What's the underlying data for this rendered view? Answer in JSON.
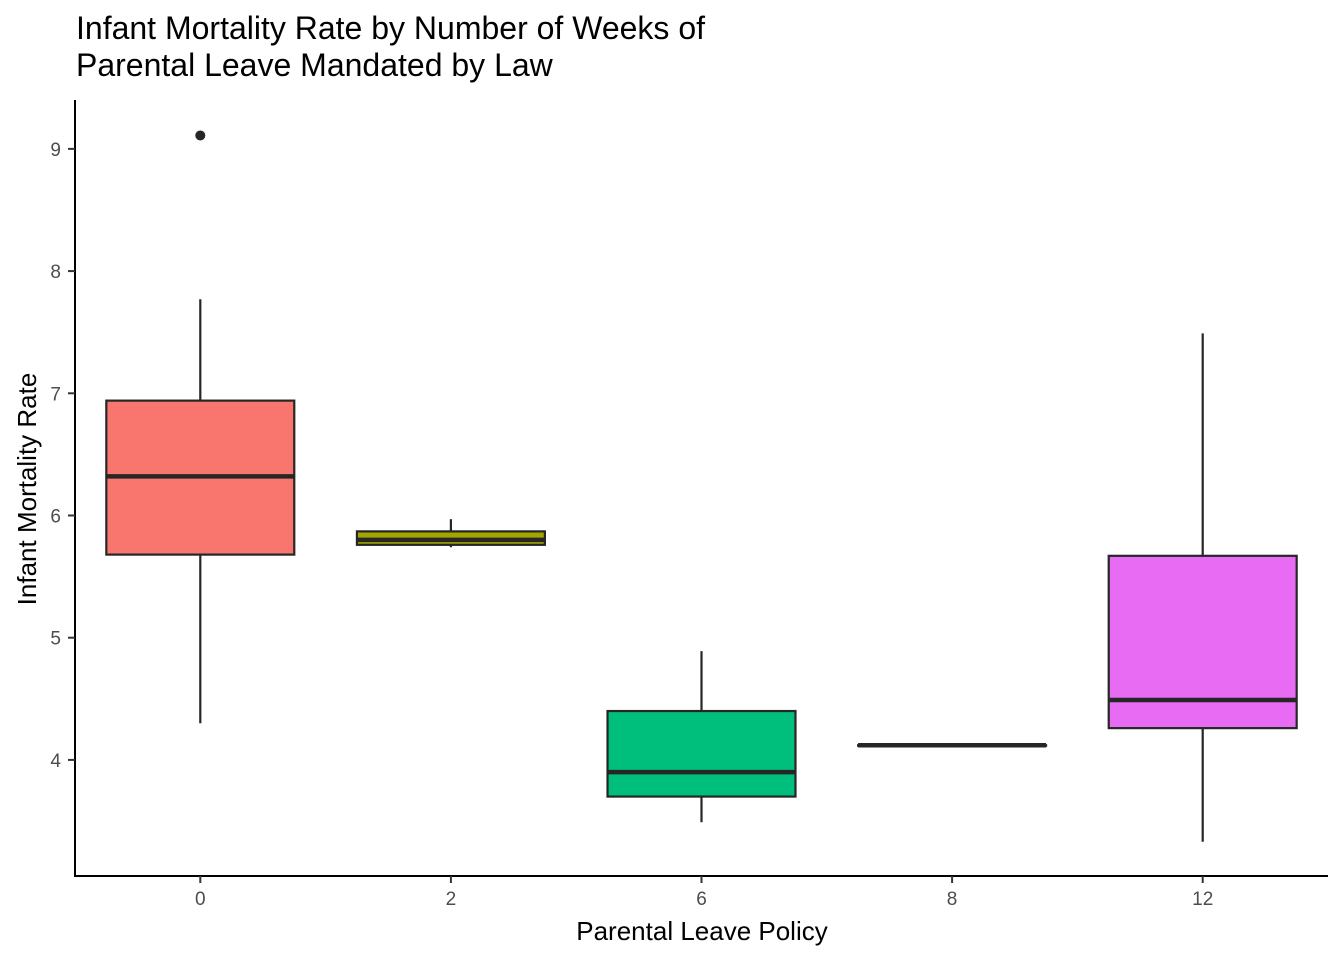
{
  "title_line1": "Infant Mortality Rate by Number of Weeks of",
  "title_line2": "Parental Leave Mandated by Law",
  "chart_data": {
    "type": "boxplot",
    "title": "Infant Mortality Rate by Number of Weeks of Parental Leave Mandated by Law",
    "xlabel": "Parental Leave Policy",
    "ylabel": "Infant Mortality Rate",
    "categories": [
      "0",
      "2",
      "6",
      "8",
      "12"
    ],
    "ylim": [
      3.05,
      9.4
    ],
    "yticks": [
      4,
      5,
      6,
      7,
      8,
      9
    ],
    "grid": false,
    "legend": "none",
    "boxes": [
      {
        "category": "0",
        "whisker_low": 4.3,
        "q1": 5.68,
        "median": 6.32,
        "q3": 6.94,
        "whisker_high": 7.77,
        "outliers": [
          9.11
        ],
        "color": "#F8766D"
      },
      {
        "category": "2",
        "whisker_low": 5.74,
        "q1": 5.76,
        "median": 5.8,
        "q3": 5.87,
        "whisker_high": 5.97,
        "outliers": [],
        "color": "#A3A500"
      },
      {
        "category": "6",
        "whisker_low": 3.49,
        "q1": 3.7,
        "median": 3.9,
        "q3": 4.4,
        "whisker_high": 4.89,
        "outliers": [],
        "color": "#00BF7D"
      },
      {
        "category": "8",
        "whisker_low": 4.12,
        "q1": 4.12,
        "median": 4.12,
        "q3": 4.12,
        "whisker_high": 4.12,
        "outliers": [],
        "color": "#00B0F6"
      },
      {
        "category": "12",
        "whisker_low": 3.33,
        "q1": 4.26,
        "median": 4.49,
        "q3": 5.67,
        "whisker_high": 7.49,
        "outliers": [],
        "color": "#E76BF3"
      }
    ]
  }
}
